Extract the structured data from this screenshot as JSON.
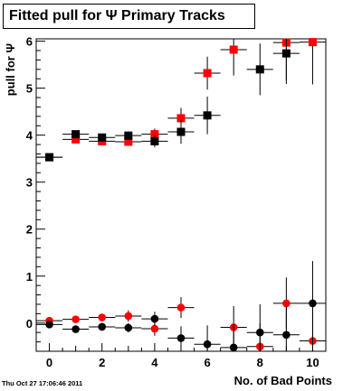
{
  "title": "Fitted pull for Ψ  Primary Tracks",
  "footer": "Thu Oct 27 17:06:46 2011",
  "chart_data": {
    "type": "scatter",
    "title": "Fitted pull for Ψ  Primary Tracks",
    "xlabel": "No. of Bad Points",
    "ylabel": "pull for Ψ",
    "xlim": [
      -0.5,
      10.5
    ],
    "ylim": [
      -0.6,
      6.05
    ],
    "x_ticks": [
      0,
      2,
      4,
      6,
      8,
      10
    ],
    "y_ticks": [
      0,
      1,
      2,
      3,
      4,
      5,
      6
    ],
    "grid": false,
    "legend": "none",
    "series": [
      {
        "marker": "square",
        "color": "#ff0000",
        "points": [
          {
            "x": 0,
            "y": 3.53,
            "err": 0.05
          },
          {
            "x": 1,
            "y": 3.91,
            "err": 0.05
          },
          {
            "x": 2,
            "y": 3.87,
            "err": 0.07
          },
          {
            "x": 3,
            "y": 3.86,
            "err": 0.08
          },
          {
            "x": 4,
            "y": 4.02,
            "err": 0.12
          },
          {
            "x": 5,
            "y": 4.36,
            "err": 0.22
          },
          {
            "x": 6,
            "y": 5.32,
            "err": 0.35
          },
          {
            "x": 7,
            "y": 5.82,
            "err": 0.55
          },
          {
            "x": 9,
            "y": 5.97,
            "err": 0.8
          },
          {
            "x": 10,
            "y": 5.98,
            "err": 0.9
          }
        ]
      },
      {
        "marker": "square",
        "color": "#000000",
        "points": [
          {
            "x": 0,
            "y": 3.53,
            "err": 0.05
          },
          {
            "x": 1,
            "y": 4.02,
            "err": 0.06
          },
          {
            "x": 2,
            "y": 3.95,
            "err": 0.08
          },
          {
            "x": 3,
            "y": 3.99,
            "err": 0.09
          },
          {
            "x": 4,
            "y": 3.87,
            "err": 0.13
          },
          {
            "x": 5,
            "y": 4.07,
            "err": 0.25
          },
          {
            "x": 6,
            "y": 4.42,
            "err": 0.4
          },
          {
            "x": 8,
            "y": 5.4,
            "err": 0.55
          },
          {
            "x": 9,
            "y": 5.74,
            "err": 0.65
          }
        ]
      },
      {
        "marker": "circle",
        "color": "#ff0000",
        "points": [
          {
            "x": 0,
            "y": 0.05,
            "err": 0.05
          },
          {
            "x": 1,
            "y": 0.08,
            "err": 0.06
          },
          {
            "x": 2,
            "y": 0.12,
            "err": 0.08
          },
          {
            "x": 3,
            "y": 0.15,
            "err": 0.12
          },
          {
            "x": 4,
            "y": -0.12,
            "err": 0.15
          },
          {
            "x": 5,
            "y": 0.33,
            "err": 0.22
          },
          {
            "x": 7,
            "y": -0.09,
            "err": 0.45
          },
          {
            "x": 8,
            "y": -0.5,
            "err": 0.5
          },
          {
            "x": 9,
            "y": 0.42,
            "err": 0.55
          },
          {
            "x": 10,
            "y": -0.38,
            "err": 0.7
          }
        ]
      },
      {
        "marker": "circle",
        "color": "#000000",
        "points": [
          {
            "x": 0,
            "y": -0.03,
            "err": 0.05
          },
          {
            "x": 1,
            "y": -0.13,
            "err": 0.06
          },
          {
            "x": 2,
            "y": -0.08,
            "err": 0.08
          },
          {
            "x": 3,
            "y": -0.1,
            "err": 0.1
          },
          {
            "x": 4,
            "y": 0.09,
            "err": 0.15
          },
          {
            "x": 5,
            "y": -0.32,
            "err": 0.25
          },
          {
            "x": 6,
            "y": -0.45,
            "err": 0.4
          },
          {
            "x": 7,
            "y": -0.52,
            "err": 0.5
          },
          {
            "x": 8,
            "y": -0.2,
            "err": 0.6
          },
          {
            "x": 9,
            "y": -0.25,
            "err": 0.6
          },
          {
            "x": 10,
            "y": 0.42,
            "err": 0.9
          }
        ]
      }
    ]
  }
}
